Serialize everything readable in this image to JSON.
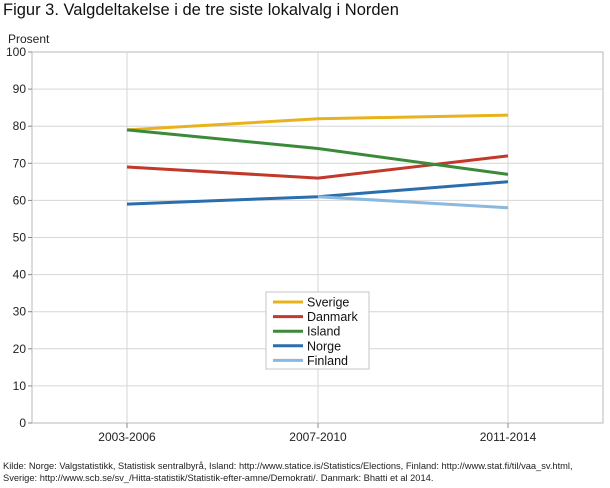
{
  "title": "Figur 3. Valgdeltakelse i de tre siste lokalvalg i Norden",
  "chart_data": {
    "type": "line",
    "title": "Figur 3. Valgdeltakelse i de tre siste lokalvalg i Norden",
    "ylabel": "Prosent",
    "xlabel": "",
    "ylim": [
      0,
      100
    ],
    "yticks": [
      0,
      10,
      20,
      30,
      40,
      50,
      60,
      70,
      80,
      90,
      100
    ],
    "categories": [
      "2003-2006",
      "2007-2010",
      "2011-2014"
    ],
    "grid": true,
    "legend_position": "center-bottom",
    "series": [
      {
        "name": "Sverige",
        "color": "#e8b21c",
        "values": [
          79,
          82,
          83
        ]
      },
      {
        "name": "Danmark",
        "color": "#c0392b",
        "values": [
          69,
          66,
          72
        ]
      },
      {
        "name": "Island",
        "color": "#3a8a3a",
        "values": [
          79,
          74,
          67
        ]
      },
      {
        "name": "Norge",
        "color": "#2a6ead",
        "values": [
          59,
          61,
          65
        ]
      },
      {
        "name": "Finland",
        "color": "#8ab8de",
        "values": [
          null,
          61,
          58
        ]
      }
    ]
  },
  "source": "Kilde: Norge: Valgstatistikk, Statistisk sentralbyrå, Island: http://www.statice.is/Statistics/Elections, Finland: http://www.stat.fi/til/vaa_sv.html, Sverige: http://www.scb.se/sv_/Hitta-statistik/Statistik-efter-amne/Demokrati/. Danmark: Bhatti et al 2014."
}
